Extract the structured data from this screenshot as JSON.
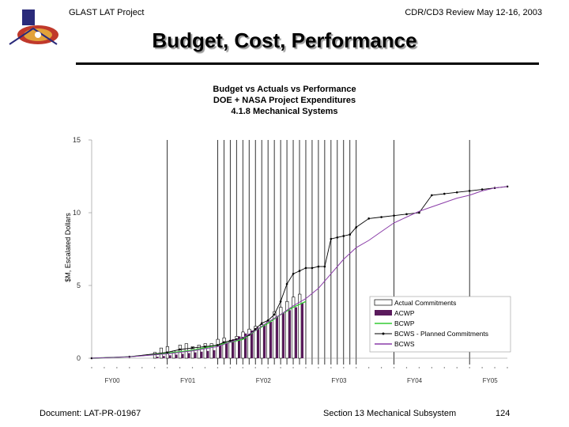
{
  "header": {
    "left": "GLAST LAT Project",
    "right": "CDR/CD3 Review May 12-16, 2003"
  },
  "slide_title": "Budget, Cost, Performance",
  "footer": {
    "document": "Document: LAT-PR-01967",
    "section": "Section 13 Mechanical Subsystem",
    "page": "124"
  },
  "logo": {
    "icon": "glast-mission-logo-icon",
    "colors": [
      "#2a2a7a",
      "#c0392b",
      "#e2a23a",
      "#ffffff"
    ]
  },
  "chart_data": {
    "type": "line",
    "title": [
      "Budget vs Actuals vs Performance",
      "DOE + NASA Project Expenditures",
      "4.1.8 Mechanical Systems"
    ],
    "ylabel": "$M, Escalated Dollars",
    "ylim": [
      0,
      15
    ],
    "yticks": [
      "0",
      "5",
      "10",
      "15"
    ],
    "xticks": [
      "FY00",
      "FY01",
      "FY02",
      "FY03",
      "FY04",
      "FY05"
    ],
    "xtick_positions": [
      0,
      12,
      24,
      36,
      48,
      60
    ],
    "x_unit": "months from start of FY00",
    "grid": "vertical lines at FY01 and from FY02 through FY03",
    "vertical_lines": [
      12,
      20,
      21,
      22,
      23,
      24,
      25,
      26,
      27,
      28,
      29,
      30,
      31,
      32,
      33,
      34,
      35,
      36,
      37,
      38,
      39,
      40,
      41,
      42,
      48,
      60
    ],
    "legend_position": "bottom-right",
    "colors": {
      "actual_commitments": "#ffffff",
      "acwp": "#5a1a5c",
      "bcwp": "#33cc33",
      "bcws_planned": "#000000",
      "bcws": "#8a3ca8"
    },
    "bar_x": [
      10,
      11,
      12,
      13,
      14,
      15,
      16,
      17,
      18,
      19,
      20,
      21,
      22,
      23,
      24,
      25,
      26,
      27,
      28,
      29,
      30,
      31,
      32,
      33
    ],
    "series": [
      {
        "name": "Actual Commitments",
        "kind": "bar",
        "values": [
          0.4,
          0.7,
          0.8,
          0.5,
          0.9,
          1.0,
          0.8,
          0.9,
          1.0,
          1.0,
          1.3,
          1.4,
          1.2,
          1.5,
          1.8,
          2.0,
          2.2,
          2.3,
          2.5,
          3.2,
          3.5,
          3.9,
          4.2,
          4.4
        ]
      },
      {
        "name": "ACWP",
        "kind": "bar",
        "values": [
          0.1,
          0.15,
          0.2,
          0.25,
          0.3,
          0.35,
          0.4,
          0.45,
          0.5,
          0.55,
          0.9,
          1.1,
          1.3,
          1.5,
          1.7,
          1.9,
          2.1,
          2.3,
          2.5,
          2.9,
          3.1,
          3.3,
          3.5,
          3.8
        ]
      },
      {
        "name": "BCWP",
        "kind": "line",
        "x": [
          0,
          6,
          12,
          16,
          20,
          24,
          26,
          28,
          30,
          32,
          34
        ],
        "values": [
          0,
          0.1,
          0.35,
          0.55,
          0.9,
          1.3,
          1.9,
          2.4,
          3.0,
          3.5,
          3.9
        ]
      },
      {
        "name": "BCWS - Planned Commitments",
        "kind": "line",
        "x": [
          0,
          6,
          12,
          14,
          16,
          18,
          20,
          21,
          22,
          23,
          24,
          25,
          26,
          27,
          28,
          29,
          30,
          31,
          32,
          33,
          34,
          35,
          36,
          37,
          38,
          39,
          40,
          41,
          42,
          44,
          46,
          48,
          50,
          52,
          54,
          56,
          58,
          60,
          62,
          64,
          66
        ],
        "values": [
          0,
          0.1,
          0.4,
          0.6,
          0.7,
          0.8,
          0.9,
          1.1,
          1.2,
          1.3,
          1.4,
          1.6,
          2.0,
          2.4,
          2.6,
          3.0,
          3.9,
          5.1,
          5.8,
          6.0,
          6.2,
          6.2,
          6.3,
          6.3,
          8.2,
          8.3,
          8.4,
          8.5,
          9.0,
          9.6,
          9.7,
          9.8,
          9.9,
          10.0,
          11.2,
          11.3,
          11.4,
          11.5,
          11.6,
          11.7,
          11.8
        ]
      },
      {
        "name": "BCWS",
        "kind": "line",
        "x": [
          0,
          6,
          12,
          16,
          20,
          24,
          26,
          28,
          30,
          32,
          34,
          36,
          38,
          40,
          42,
          44,
          46,
          48,
          50,
          52,
          54,
          56,
          58,
          60,
          62,
          64,
          66
        ],
        "values": [
          0,
          0.1,
          0.3,
          0.5,
          0.8,
          1.4,
          1.9,
          2.5,
          3.0,
          3.6,
          4.1,
          4.8,
          5.8,
          6.8,
          7.6,
          8.1,
          8.7,
          9.3,
          9.7,
          10.1,
          10.4,
          10.7,
          11.0,
          11.2,
          11.5,
          11.7,
          11.8
        ]
      }
    ]
  }
}
